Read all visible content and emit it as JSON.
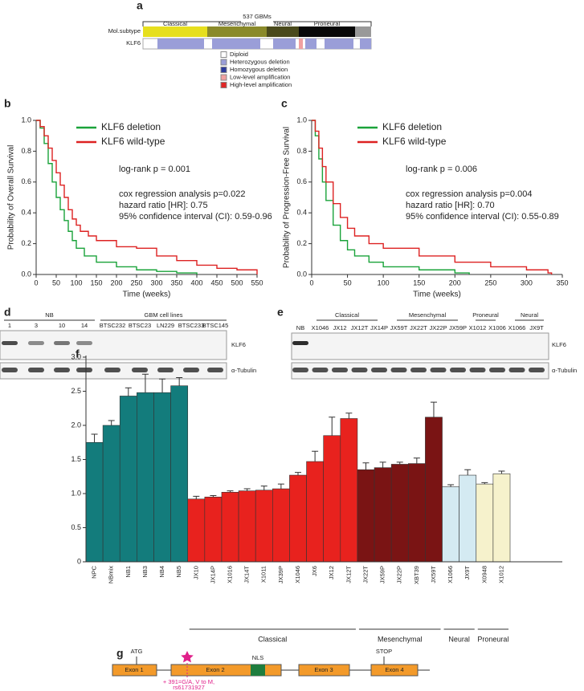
{
  "panel_a": {
    "label": "a",
    "title": "537 GBMs",
    "row_labels": [
      "Mol.subtype",
      "KLF6"
    ],
    "subtypes": [
      {
        "name": "Classical",
        "color": "#e6df1e"
      },
      {
        "name": "Mesenchymal",
        "color": "#8a8a2a"
      },
      {
        "name": "Neural",
        "color": "#4a4a1c"
      },
      {
        "name": "Proneural",
        "color": "#080808"
      }
    ],
    "legend": [
      {
        "label": "Diploid",
        "color": "#ffffff"
      },
      {
        "label": "Heterozygous deletion",
        "color": "#9a9ed8"
      },
      {
        "label": "Homozygous deletion",
        "color": "#2b3a9c"
      },
      {
        "label": "Low-level amplification",
        "color": "#f0a0a0"
      },
      {
        "label": "High-level amplification",
        "color": "#e02828"
      }
    ]
  },
  "chart_data": [
    {
      "type": "line",
      "panel": "b",
      "y_label": "Probability of Overall Survival",
      "x_label": "Time (weeks)",
      "xlim": [
        0,
        550
      ],
      "xticks": [
        0,
        50,
        100,
        150,
        200,
        250,
        300,
        350,
        400,
        450,
        500,
        550
      ],
      "ylim": [
        0,
        1
      ],
      "yticks": [
        {
          "value": 0,
          "label": "0.0"
        },
        0.2,
        0.4,
        0.6,
        0.8,
        {
          "value": 1,
          "label": "1.0"
        }
      ],
      "series": [
        {
          "name": "KLF6 deletion",
          "color": "#1aa33a",
          "x": [
            0,
            10,
            20,
            30,
            40,
            50,
            60,
            70,
            80,
            90,
            100,
            120,
            150,
            200,
            250,
            300,
            350,
            400
          ],
          "values": [
            1,
            0.95,
            0.85,
            0.72,
            0.6,
            0.5,
            0.42,
            0.35,
            0.28,
            0.22,
            0.17,
            0.12,
            0.08,
            0.05,
            0.03,
            0.02,
            0.01,
            0
          ]
        },
        {
          "name": "KLF6 wild-type",
          "color": "#dd2222",
          "x": [
            0,
            10,
            20,
            30,
            40,
            50,
            60,
            70,
            80,
            90,
            100,
            110,
            130,
            150,
            200,
            250,
            300,
            350,
            400,
            450,
            500,
            550
          ],
          "values": [
            1,
            0.96,
            0.9,
            0.82,
            0.74,
            0.66,
            0.58,
            0.5,
            0.42,
            0.36,
            0.32,
            0.28,
            0.25,
            0.22,
            0.18,
            0.17,
            0.12,
            0.09,
            0.06,
            0.04,
            0.03,
            0
          ]
        }
      ],
      "annotations": [
        "log-rank p = 0.001",
        "cox regression analysis p=0.022",
        "hazard ratio [HR]: 0.75",
        "95% confidence interval (CI): 0.59-0.96"
      ]
    },
    {
      "type": "line",
      "panel": "c",
      "y_label": "Probability of Progression-Free Survival",
      "x_label": "Time (weeks)",
      "xlim": [
        0,
        350
      ],
      "xticks": [
        0,
        50,
        100,
        150,
        200,
        250,
        300,
        350
      ],
      "ylim": [
        0,
        1
      ],
      "yticks": [
        {
          "value": 0,
          "label": "0.0"
        },
        0.2,
        0.4,
        0.6,
        0.8,
        {
          "value": 1,
          "label": "1.0"
        }
      ],
      "series": [
        {
          "name": "KLF6 deletion",
          "color": "#1aa33a",
          "x": [
            0,
            5,
            10,
            15,
            20,
            30,
            40,
            50,
            60,
            80,
            100,
            150,
            200,
            220
          ],
          "values": [
            1,
            0.9,
            0.75,
            0.6,
            0.48,
            0.32,
            0.22,
            0.16,
            0.12,
            0.08,
            0.05,
            0.03,
            0.01,
            0
          ]
        },
        {
          "name": "KLF6 wild-type",
          "color": "#dd2222",
          "x": [
            0,
            5,
            10,
            15,
            20,
            30,
            40,
            50,
            60,
            80,
            100,
            150,
            200,
            250,
            300,
            330,
            335
          ],
          "values": [
            1,
            0.93,
            0.82,
            0.7,
            0.6,
            0.46,
            0.37,
            0.3,
            0.25,
            0.2,
            0.17,
            0.12,
            0.08,
            0.05,
            0.03,
            0.01,
            0
          ]
        }
      ],
      "annotations": [
        "log-rank p = 0.006",
        "cox regression analysis p=0.004",
        "hazard ratio [HR]: 0.70",
        "95% confidence interval (CI): 0.55-0.89"
      ]
    },
    {
      "type": "bar",
      "panel": "f",
      "ylim": [
        0,
        3
      ],
      "yticks": [
        0,
        0.5,
        {
          "value": 1,
          "label": "1.0"
        },
        1.5,
        {
          "value": 2,
          "label": "2.0"
        },
        2.5,
        {
          "value": 3,
          "label": "3.0"
        }
      ],
      "categories": [
        "NPC",
        "NBmix",
        "NB1",
        "NB3",
        "NB4",
        "NB5",
        "JX10",
        "JX14P",
        "X1016",
        "JX14T",
        "X1011",
        "JX39P",
        "X1046",
        "JX6",
        "JX12",
        "JX12T",
        "JX22T",
        "JX59P",
        "JX22P",
        "XBT39",
        "JX59T",
        "X1066",
        "JX9T",
        "X0948",
        "X1012"
      ],
      "values": [
        1.75,
        2.0,
        2.43,
        2.48,
        2.48,
        2.58,
        0.92,
        0.95,
        1.02,
        1.04,
        1.05,
        1.07,
        1.27,
        1.47,
        1.85,
        2.1,
        1.35,
        1.38,
        1.43,
        1.44,
        2.12,
        1.1,
        1.27,
        1.14,
        1.29
      ],
      "errors": [
        0.12,
        0.07,
        0.12,
        0.27,
        0.2,
        0.12,
        0.04,
        0.02,
        0.02,
        0.03,
        0.06,
        0.07,
        0.04,
        0.15,
        0.27,
        0.08,
        0.1,
        0.08,
        0.03,
        0.08,
        0.22,
        0.03,
        0.08,
        0.02,
        0.04
      ],
      "colors": [
        "#137c7c",
        "#137c7c",
        "#137c7c",
        "#137c7c",
        "#137c7c",
        "#137c7c",
        "#e8221e",
        "#e8221e",
        "#e8221e",
        "#e8221e",
        "#e8221e",
        "#e8221e",
        "#e8221e",
        "#e8221e",
        "#e8221e",
        "#e8221e",
        "#7a1414",
        "#7a1414",
        "#7a1414",
        "#7a1414",
        "#7a1414",
        "#d4eaf2",
        "#d4eaf2",
        "#f6f2cc",
        "#f6f2cc"
      ],
      "groups": [
        "Classical",
        "Mesenchymal",
        "Neural",
        "Proneural"
      ]
    }
  ],
  "panel_d": {
    "label": "d",
    "groups": [
      "NB",
      "GBM cell lines"
    ],
    "lanes": [
      "1",
      "3",
      "10",
      "14",
      "BTSC232",
      "BTSC23",
      "LN229",
      "BTSC233",
      "BTSC145"
    ],
    "rows": [
      "KLF6",
      "α-Tubulin"
    ]
  },
  "panel_e": {
    "label": "e",
    "groups": [
      "Classical",
      "Mesenchymal",
      "Proneural",
      "Neural"
    ],
    "lanes": [
      "NB",
      "X1046",
      "JX12",
      "JX12T",
      "JX14P",
      "JX59T",
      "JX22T",
      "JX22P",
      "JX59P",
      "X1012",
      "X1006",
      "X1066",
      "JX9T"
    ],
    "rows": [
      "KLF6",
      "α-Tubulin"
    ]
  },
  "panel_g": {
    "label": "g",
    "exons": [
      "Exon 1",
      "Exon 2",
      "Exon 3",
      "Exon 4"
    ],
    "start": "ATG",
    "stop": "STOP",
    "domain": "NLS",
    "variant": [
      "+ 391=G/A, V to M,",
      "rs61731927"
    ]
  }
}
